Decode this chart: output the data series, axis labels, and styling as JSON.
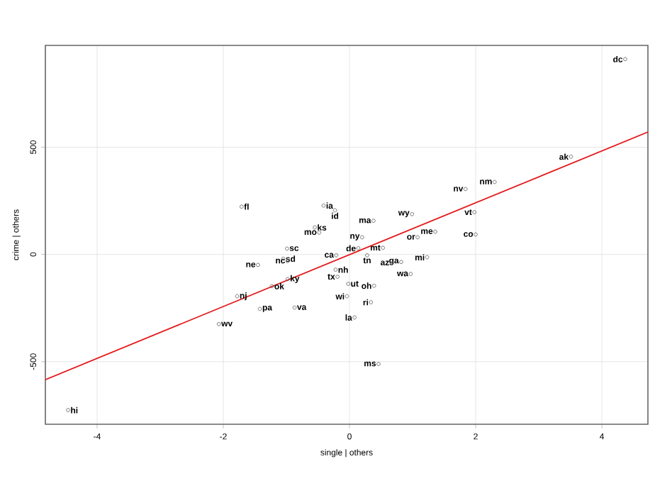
{
  "chart_data": {
    "type": "scatter",
    "xlabel": "single | others",
    "ylabel": "crime | others",
    "xlim": [
      -4.82,
      4.73
    ],
    "ylim": [
      -792,
      975
    ],
    "xticks": [
      -4,
      -2,
      0,
      2,
      4
    ],
    "yticks": [
      -500,
      0,
      500
    ],
    "grid": true,
    "series": [
      {
        "color": "#555555",
        "marker": "circle",
        "x": [
          4.37,
          3.51,
          2.3,
          1.84,
          1.98,
          2.0,
          0.99,
          1.36,
          1.08,
          1.23,
          0.97,
          0.82,
          0.67,
          0.53,
          0.38,
          0.2,
          0.14,
          0.28,
          -0.21,
          0.39,
          0.34,
          -0.04,
          0.08,
          0.46,
          -1.71,
          -0.41,
          -0.23,
          -0.55,
          -0.48,
          -0.99,
          -1.05,
          -0.98,
          -0.98,
          -1.23,
          -1.78,
          -1.42,
          -0.87,
          -2.07,
          -4.46,
          -0.22,
          -0.19,
          -0.02,
          -1.45
        ],
        "values": [
          911,
          456,
          338,
          305,
          197,
          93,
          188,
          106,
          80,
          -13,
          -91,
          -35,
          -40,
          31,
          157,
          80,
          29,
          -4,
          -4,
          -146,
          -223,
          -195,
          -294,
          -511,
          223,
          228,
          206,
          126,
          102,
          27,
          -20,
          -31,
          -115,
          -148,
          -195,
          -254,
          -248,
          -325,
          -726,
          -71,
          -104,
          -137,
          -49
        ]
      },
      {
        "type": "line",
        "color": "#e41a1c",
        "x": [
          -4.82,
          4.73
        ],
        "values": [
          -584,
          571
        ]
      }
    ],
    "annotations": [
      {
        "text": "dc",
        "x": 4.37,
        "y": 911
      },
      {
        "text": "ak",
        "x": 3.51,
        "y": 456
      },
      {
        "text": "nm",
        "x": 2.3,
        "y": 338
      },
      {
        "text": "nv",
        "x": 1.84,
        "y": 305
      },
      {
        "text": "vt",
        "x": 1.98,
        "y": 197
      },
      {
        "text": "co",
        "x": 2.0,
        "y": 93
      },
      {
        "text": "wy",
        "x": 0.99,
        "y": 188
      },
      {
        "text": "me",
        "x": 1.36,
        "y": 106
      },
      {
        "text": "or",
        "x": 1.08,
        "y": 80
      },
      {
        "text": "mi",
        "x": 1.23,
        "y": -13
      },
      {
        "text": "wa",
        "x": 0.97,
        "y": -91
      },
      {
        "text": "ga",
        "x": 0.82,
        "y": -35
      },
      {
        "text": "az",
        "x": 0.67,
        "y": -40
      },
      {
        "text": "mt",
        "x": 0.53,
        "y": 31
      },
      {
        "text": "ma",
        "x": 0.38,
        "y": 157
      },
      {
        "text": "ny",
        "x": 0.2,
        "y": 80
      },
      {
        "text": "de",
        "x": 0.14,
        "y": 29
      },
      {
        "text": "tn",
        "x": 0.28,
        "y": -4
      },
      {
        "text": "ca",
        "x": -0.21,
        "y": -4
      },
      {
        "text": "oh",
        "x": 0.39,
        "y": -146
      },
      {
        "text": "ri",
        "x": 0.34,
        "y": -223
      },
      {
        "text": "wi",
        "x": -0.04,
        "y": -195
      },
      {
        "text": "la",
        "x": 0.08,
        "y": -294
      },
      {
        "text": "ms",
        "x": 0.46,
        "y": -511
      },
      {
        "text": "fl",
        "x": -1.71,
        "y": 223
      },
      {
        "text": "ia",
        "x": -0.41,
        "y": 228
      },
      {
        "text": "id",
        "x": -0.23,
        "y": 206
      },
      {
        "text": "ks",
        "x": -0.55,
        "y": 126
      },
      {
        "text": "mo",
        "x": -0.48,
        "y": 102
      },
      {
        "text": "sc",
        "x": -0.99,
        "y": 27
      },
      {
        "text": "sd",
        "x": -1.05,
        "y": -20
      },
      {
        "text": "nc",
        "x": -0.98,
        "y": -31
      },
      {
        "text": "ky",
        "x": -0.98,
        "y": -115
      },
      {
        "text": "ok",
        "x": -1.23,
        "y": -148
      },
      {
        "text": "nj",
        "x": -1.78,
        "y": -195
      },
      {
        "text": "pa",
        "x": -1.42,
        "y": -254
      },
      {
        "text": "va",
        "x": -0.87,
        "y": -248
      },
      {
        "text": "wv",
        "x": -2.07,
        "y": -325
      },
      {
        "text": "hi",
        "x": -4.46,
        "y": -726
      },
      {
        "text": "nh",
        "x": -0.22,
        "y": -71
      },
      {
        "text": "tx",
        "x": -0.19,
        "y": -104
      },
      {
        "text": "ut",
        "x": -0.02,
        "y": -137
      },
      {
        "text": "ne",
        "x": -1.45,
        "y": -49
      }
    ]
  }
}
